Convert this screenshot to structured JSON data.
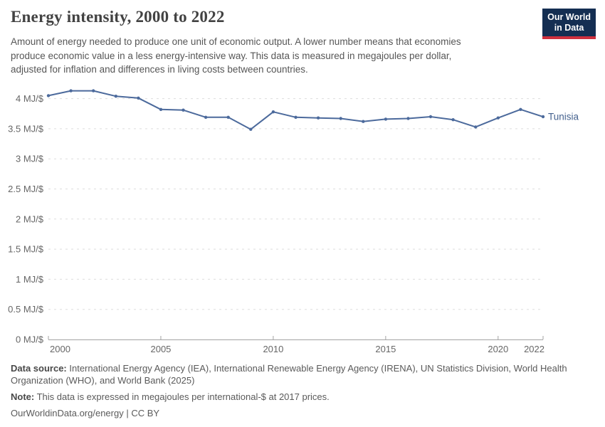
{
  "header": {
    "title": "Energy intensity, 2000 to 2022",
    "subtitle": "Amount of energy needed to produce one unit of economic output. A lower number means that economies\nproduce economic value in a less energy-intensive way. This data is measured in megajoules per dollar,\nadjusted for inflation and differences in living costs between countries.",
    "logo": {
      "line1": "Our World",
      "line2": "in Data"
    }
  },
  "colors": {
    "line": "#4c6a9c",
    "series_label": "#44618e",
    "grid": "#dddddd",
    "axis": "#a3a3a3",
    "tick_text": "#666666",
    "logo_navy": "#142e52",
    "logo_red": "#cf303e"
  },
  "chart_data": {
    "type": "line",
    "title": "Energy intensity, 2000 to 2022",
    "unit": "MJ/$",
    "xlabel": "",
    "ylabel": "MJ/$",
    "xlim": [
      2000,
      2022
    ],
    "ylim": [
      0,
      4.3
    ],
    "grid": true,
    "legend": "end-of-line label",
    "x": [
      2000,
      2001,
      2002,
      2003,
      2004,
      2005,
      2006,
      2007,
      2008,
      2009,
      2010,
      2011,
      2012,
      2013,
      2014,
      2015,
      2016,
      2017,
      2018,
      2019,
      2020,
      2021,
      2022
    ],
    "series": [
      {
        "name": "Tunisia",
        "color": "#4c6a9c",
        "values": [
          4.05,
          4.13,
          4.13,
          4.04,
          4.01,
          3.82,
          3.81,
          3.69,
          3.69,
          3.49,
          3.78,
          3.69,
          3.68,
          3.67,
          3.62,
          3.66,
          3.67,
          3.7,
          3.65,
          3.53,
          3.68,
          3.82,
          3.7
        ]
      }
    ],
    "x_ticks": [
      {
        "year": 2000,
        "label": "2000"
      },
      {
        "year": 2005,
        "label": "2005"
      },
      {
        "year": 2010,
        "label": "2010"
      },
      {
        "year": 2015,
        "label": "2015"
      },
      {
        "year": 2020,
        "label": "2020"
      },
      {
        "year": 2022,
        "label": "2022"
      }
    ],
    "y_ticks": [
      {
        "value": 0,
        "label": "0 MJ/$"
      },
      {
        "value": 0.5,
        "label": "0.5 MJ/$"
      },
      {
        "value": 1,
        "label": "1 MJ/$"
      },
      {
        "value": 1.5,
        "label": "1.5 MJ/$"
      },
      {
        "value": 2,
        "label": "2 MJ/$"
      },
      {
        "value": 2.5,
        "label": "2.5 MJ/$"
      },
      {
        "value": 3,
        "label": "3 MJ/$"
      },
      {
        "value": 3.5,
        "label": "3.5 MJ/$"
      },
      {
        "value": 4,
        "label": "4 MJ/$"
      }
    ]
  },
  "footer": {
    "datasource_label": "Data source:",
    "datasource": " International Energy Agency (IEA), International Renewable Energy Agency (IRENA), UN Statistics Division, World Health\nOrganization (WHO), and World Bank (2025)",
    "note_label": "Note:",
    "note": " This data is expressed in megajoules per international-$ at 2017 prices.",
    "link": "OurWorldinData.org/energy | CC BY"
  }
}
